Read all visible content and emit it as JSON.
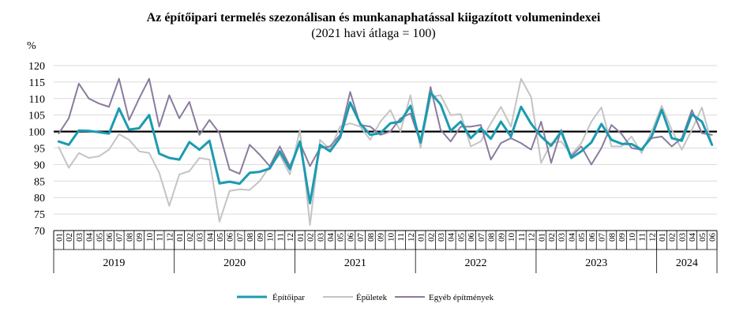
{
  "chart_data": {
    "type": "line",
    "title": "Az építőipari  termelés szezonálisan és munkanaphatással kiigazított volumenindexei",
    "subtitle": "(2021 havi átlaga = 100)",
    "ylabel": "%",
    "ylim": [
      70,
      120
    ],
    "yticks": [
      70,
      75,
      80,
      85,
      90,
      95,
      100,
      105,
      110,
      115,
      120
    ],
    "reference_line": 100,
    "years": [
      "2019",
      "2020",
      "2021",
      "2022",
      "2023",
      "2024"
    ],
    "month_labels": [
      "01",
      "02",
      "03",
      "04",
      "05",
      "06",
      "07",
      "08",
      "09",
      "10",
      "11",
      "12"
    ],
    "last_year_months": 6,
    "series": [
      {
        "name": "Építőipar",
        "color": "#1B9BB0",
        "values": [
          97.0,
          96.0,
          100.3,
          100.2,
          99.8,
          99.4,
          107.0,
          100.6,
          101.0,
          105.0,
          93.3,
          92.0,
          91.5,
          96.8,
          94.5,
          97.2,
          84.3,
          84.8,
          84.2,
          87.5,
          87.8,
          88.8,
          94.0,
          88.6,
          97.0,
          78.3,
          96.0,
          94.0,
          98.2,
          108.8,
          102.4,
          99.0,
          99.5,
          102.5,
          103.0,
          107.8,
          96.7,
          111.8,
          108.2,
          100.2,
          103.0,
          98.0,
          101.0,
          97.8,
          103.0,
          98.5,
          107.5,
          102.4,
          98.5,
          95.7,
          100.0,
          92.0,
          94.0,
          96.7,
          102.3,
          97.5,
          96.3,
          96.2,
          94.5,
          98.5,
          106.6,
          98.0,
          97.2,
          105.2,
          103.0,
          96.0
        ]
      },
      {
        "name": "Épületek",
        "color": "#C4C4C4",
        "values": [
          95.3,
          89.0,
          93.5,
          92.0,
          92.5,
          94.5,
          99.2,
          97.5,
          94.0,
          93.5,
          87.5,
          77.5,
          87.0,
          88.0,
          92.0,
          91.5,
          72.7,
          82.0,
          82.5,
          82.3,
          85.0,
          89.5,
          93.0,
          87.0,
          100.5,
          71.7,
          97.5,
          94.5,
          101.5,
          102.5,
          101.5,
          97.5,
          103.0,
          106.5,
          100.0,
          111.0,
          95.0,
          110.5,
          111.0,
          105.0,
          105.3,
          95.5,
          97.0,
          102.5,
          107.5,
          101.5,
          116.0,
          110.5,
          90.5,
          96.5,
          97.0,
          93.0,
          96.5,
          103.0,
          107.3,
          95.5,
          95.5,
          98.5,
          93.5,
          100.0,
          107.8,
          100.5,
          94.5,
          100.5,
          107.3,
          96.0
        ]
      },
      {
        "name": "Egyéb építmények",
        "color": "#8B7B9E",
        "values": [
          99.4,
          104.0,
          114.5,
          110.0,
          108.5,
          107.5,
          116.0,
          103.5,
          110.0,
          116.0,
          101.5,
          111.0,
          104.0,
          109.0,
          99.0,
          103.5,
          99.5,
          88.5,
          87.2,
          96.0,
          93.0,
          89.5,
          95.5,
          89.5,
          96.5,
          89.5,
          95.0,
          95.5,
          99.0,
          112.0,
          102.0,
          101.5,
          99.0,
          100.0,
          104.0,
          105.5,
          96.5,
          113.5,
          100.5,
          97.0,
          101.5,
          101.5,
          102.0,
          91.5,
          96.5,
          98.0,
          96.5,
          94.5,
          103.0,
          90.5,
          100.5,
          92.5,
          95.5,
          90.0,
          95.0,
          102.0,
          99.3,
          95.0,
          94.5,
          98.0,
          98.5,
          95.5,
          98.0,
          106.5,
          99.5,
          99.0
        ]
      }
    ]
  }
}
